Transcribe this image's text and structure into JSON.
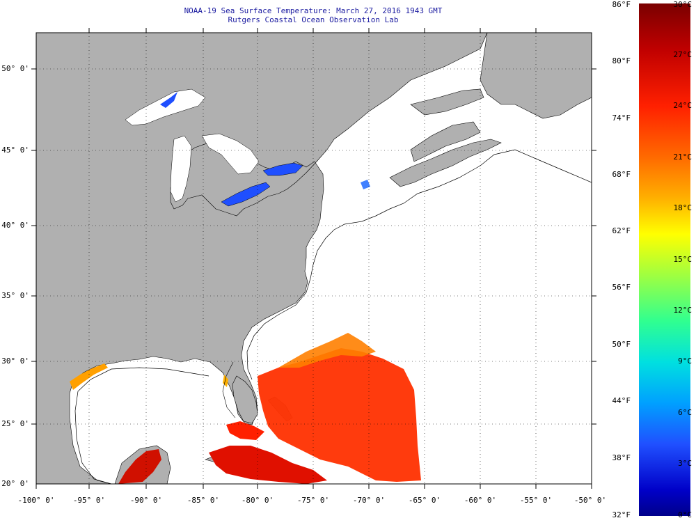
{
  "title": {
    "line1": "NOAA-19 Sea Surface Temperature:  March 27, 2016 1943 GMT",
    "line2": "Rutgers Coastal Ocean Observation Lab"
  },
  "axes": {
    "lat_labels": [
      "50° 0'",
      "45° 0'",
      "40° 0'",
      "35° 0'",
      "30° 0'",
      "25° 0'",
      "20° 0'"
    ],
    "lon_labels": [
      "-100° 0'",
      "-95° 0'",
      "-90° 0'",
      "-85° 0'",
      "-80° 0'",
      "-75° 0'",
      "-70° 0'",
      "-65° 0'",
      "-60° 0'",
      "-55° 0'",
      "-50° 0'"
    ]
  },
  "colorbar": {
    "fahrenheit": [
      "86°F",
      "80°F",
      "74°F",
      "68°F",
      "62°F",
      "56°F",
      "50°F",
      "44°F",
      "38°F",
      "32°F"
    ],
    "celsius": [
      "30°C",
      "27°C",
      "24°C",
      "21°C",
      "18°C",
      "15°C",
      "12°C",
      "9°C",
      "6°C",
      "3°C",
      "0°C"
    ]
  },
  "colors": {
    "land": "#b0b0b0",
    "cloud": "#ffffff",
    "title_text": "#1a1aa0",
    "warm_water": "#ff2800",
    "cold_water": "#1f4fff"
  }
}
